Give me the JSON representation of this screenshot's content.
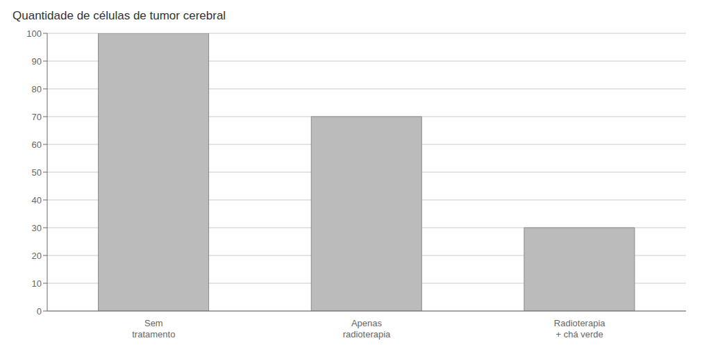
{
  "chart_data": {
    "type": "bar",
    "title": "Quantidade de células de tumor cerebral",
    "categories": [
      "Sem\ntratamento",
      "Apenas\nradioterapia",
      "Radioterapia\n+ chá verde"
    ],
    "values": [
      100,
      70,
      30
    ],
    "color": "#bbbbbb",
    "ylim": [
      0,
      100
    ],
    "yticks": [
      0,
      10,
      20,
      30,
      40,
      50,
      60,
      70,
      80,
      90,
      100
    ],
    "grid": true
  }
}
